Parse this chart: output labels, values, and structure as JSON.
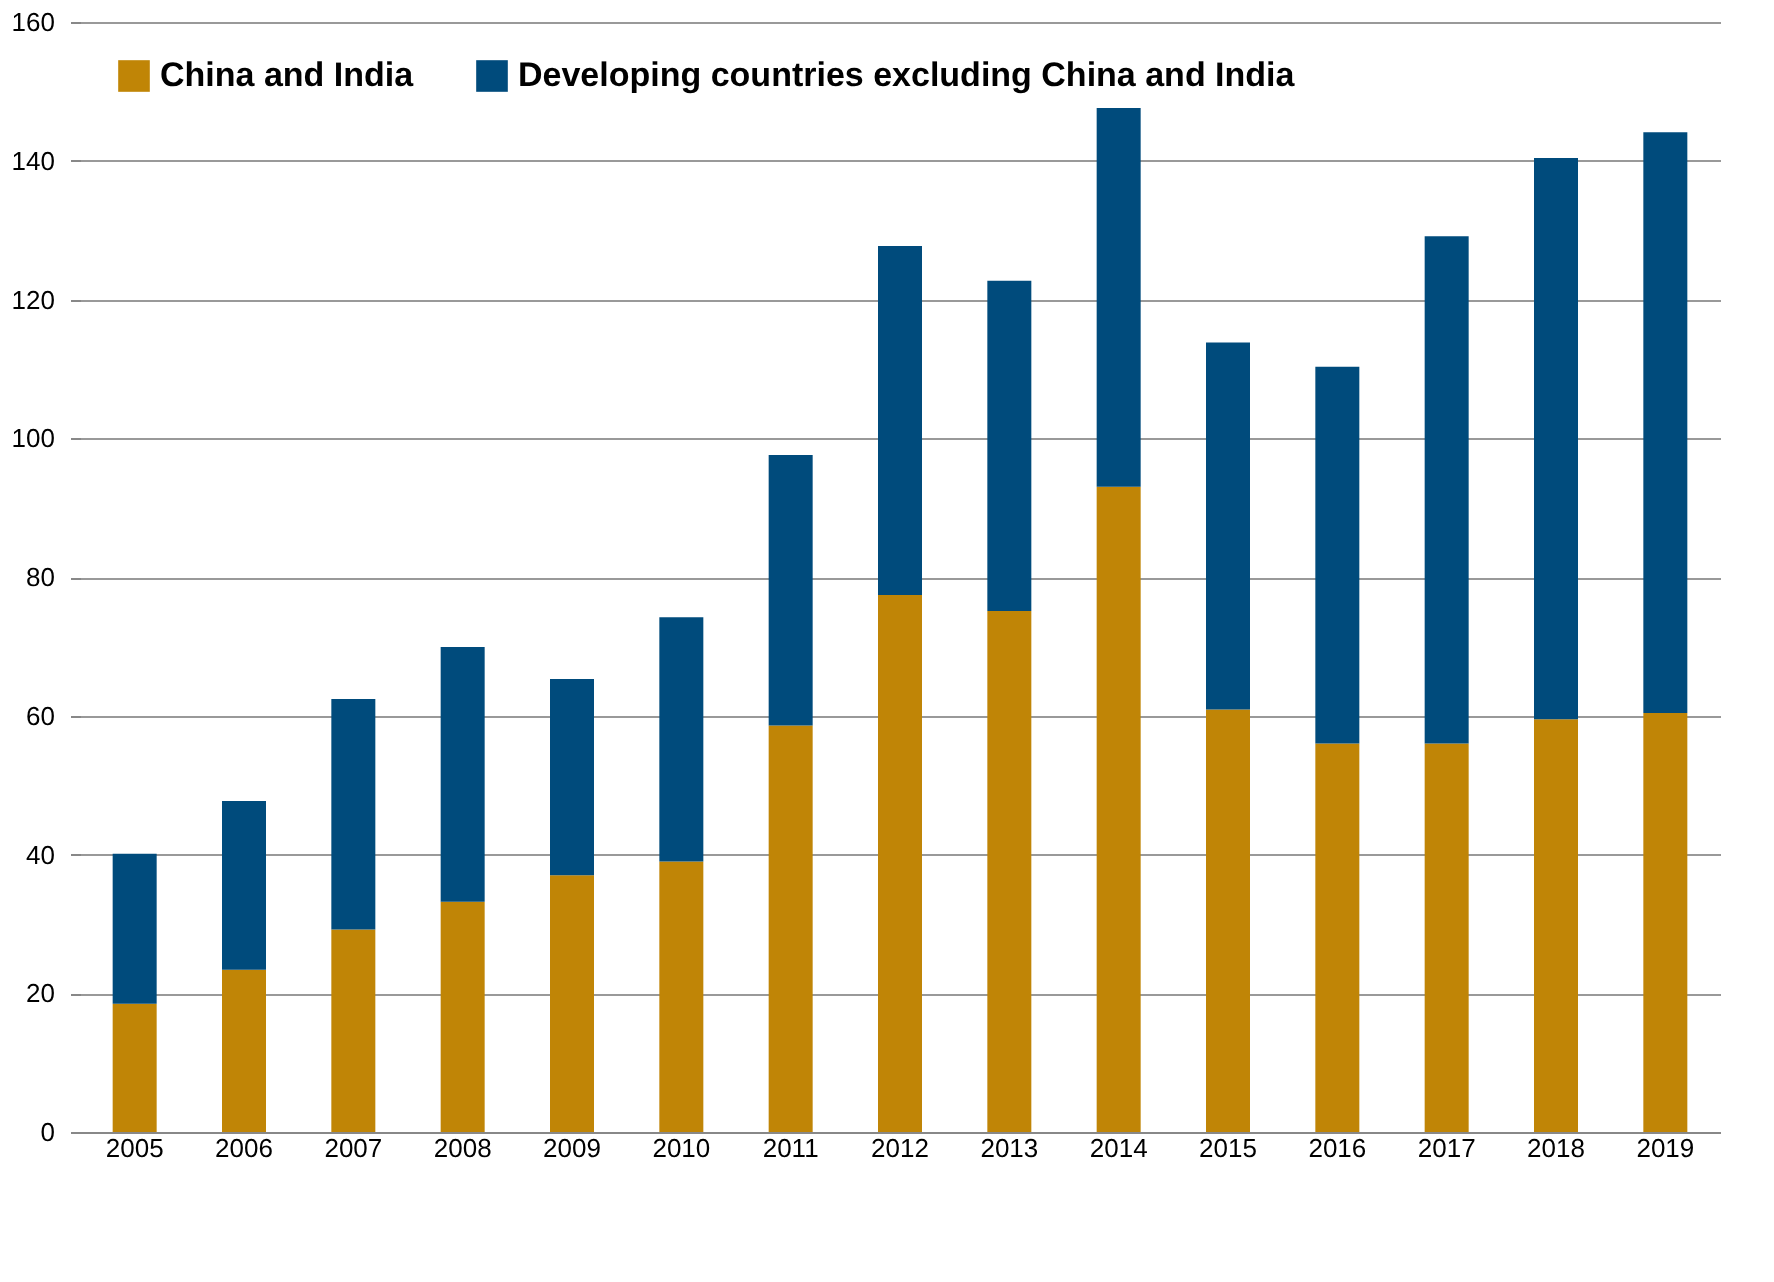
{
  "chart_data": {
    "type": "bar",
    "stacked": true,
    "categories": [
      "2005",
      "2006",
      "2007",
      "2008",
      "2009",
      "2010",
      "2011",
      "2012",
      "2013",
      "2014",
      "2015",
      "2016",
      "2017",
      "2018",
      "2019"
    ],
    "series": [
      {
        "name": "China and India",
        "color": "#c08506",
        "values": [
          18.5,
          23.4,
          29.2,
          33.2,
          37.0,
          39.0,
          58.6,
          77.4,
          75.1,
          93.0,
          60.9,
          56.0,
          56.0,
          59.5,
          60.4
        ]
      },
      {
        "name": "Developing countries excluding China and India",
        "color": "#004b7c",
        "values": [
          21.6,
          24.3,
          33.2,
          36.7,
          28.3,
          35.2,
          39.0,
          50.3,
          47.6,
          54.6,
          52.9,
          54.3,
          73.1,
          80.9,
          83.7
        ]
      }
    ],
    "ylim": [
      0,
      160
    ],
    "yticks": [
      0,
      20,
      40,
      60,
      80,
      100,
      120,
      140,
      160
    ],
    "grid": "y",
    "legend": "top left"
  }
}
